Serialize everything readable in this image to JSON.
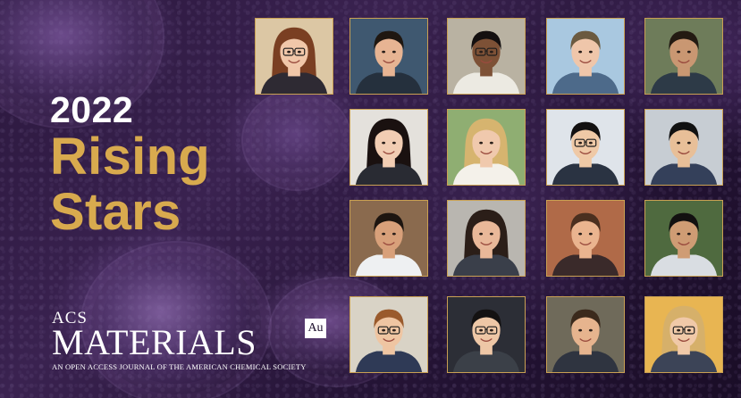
{
  "title": {
    "year": "2022",
    "line1": "Rising",
    "line2": "Stars"
  },
  "logo": {
    "acs": "ACS",
    "name": "MATERIALS",
    "badge": "Au",
    "tagline": "AN OPEN ACCESS JOURNAL OF THE AMERICAN CHEMICAL SOCIETY"
  },
  "colors": {
    "title_white": "#ffffff",
    "title_gold": "#d8aa4e",
    "frame_gold": "#c9a052",
    "background_purple": "#2a173c"
  },
  "portraits": [
    {
      "bg": "#dcc7a4",
      "skin": "#f1c7a9",
      "hair": "#7a3f22",
      "shirt": "#2e2a33",
      "long_hair": true,
      "glasses": true
    },
    {
      "bg": "#3f5870",
      "skin": "#e7b493",
      "hair": "#1f1711",
      "shirt": "#25303d",
      "long_hair": false,
      "glasses": false
    },
    {
      "bg": "#b9b2a2",
      "skin": "#7d5136",
      "hair": "#141010",
      "shirt": "#eceae2",
      "long_hair": false,
      "glasses": true
    },
    {
      "bg": "#a9c8e0",
      "skin": "#efc6aa",
      "hair": "#6b5a40",
      "shirt": "#4d6a8a",
      "long_hair": false,
      "glasses": false
    },
    {
      "bg": "#6e7c5a",
      "skin": "#c99772",
      "hair": "#231a12",
      "shirt": "#2d3a47",
      "long_hair": false,
      "glasses": false
    },
    {
      "bg": "#e4e1dc",
      "skin": "#f2cdb3",
      "hair": "#1a1110",
      "shirt": "#292b33",
      "long_hair": true,
      "glasses": false
    },
    {
      "bg": "#8fae72",
      "skin": "#f0c9ad",
      "hair": "#d6b46f",
      "shirt": "#f4f1ea",
      "long_hair": true,
      "glasses": false
    },
    {
      "bg": "#dfe4ea",
      "skin": "#efc9a6",
      "hair": "#131111",
      "shirt": "#2a3342",
      "long_hair": false,
      "glasses": true
    },
    {
      "bg": "#c7cdd3",
      "skin": "#e8bf98",
      "hair": "#111111",
      "shirt": "#34405a",
      "long_hair": false,
      "glasses": false
    },
    {
      "bg": "#8a6a4e",
      "skin": "#d8a07a",
      "hair": "#1d1510",
      "shirt": "#eef0f2",
      "long_hair": false,
      "glasses": false
    },
    {
      "bg": "#b9b6b0",
      "skin": "#e9b899",
      "hair": "#2b1e18",
      "shirt": "#3a3f4a",
      "long_hair": true,
      "glasses": false
    },
    {
      "bg": "#b06a48",
      "skin": "#eab48f",
      "hair": "#4b2f1f",
      "shirt": "#3a2a2a",
      "long_hair": false,
      "glasses": false
    },
    {
      "bg": "#4f6a3f",
      "skin": "#cf9c74",
      "hair": "#121010",
      "shirt": "#d9dde2",
      "long_hair": false,
      "glasses": false
    },
    {
      "bg": "#d9d3c6",
      "skin": "#efc5a2",
      "hair": "#9a5a2c",
      "shirt": "#2f3a56",
      "long_hair": false,
      "glasses": true
    },
    {
      "bg": "#2c2e36",
      "skin": "#eec7a6",
      "hair": "#141212",
      "shirt": "#3b4048",
      "long_hair": false,
      "glasses": true
    },
    {
      "bg": "#6f6a5a",
      "skin": "#e6b48e",
      "hair": "#3b2a1c",
      "shirt": "#2f3440",
      "long_hair": false,
      "glasses": false
    },
    {
      "bg": "#e8b552",
      "skin": "#f0c9a8",
      "hair": "#d6b06a",
      "shirt": "#3c4457",
      "long_hair": true,
      "glasses": true
    }
  ]
}
